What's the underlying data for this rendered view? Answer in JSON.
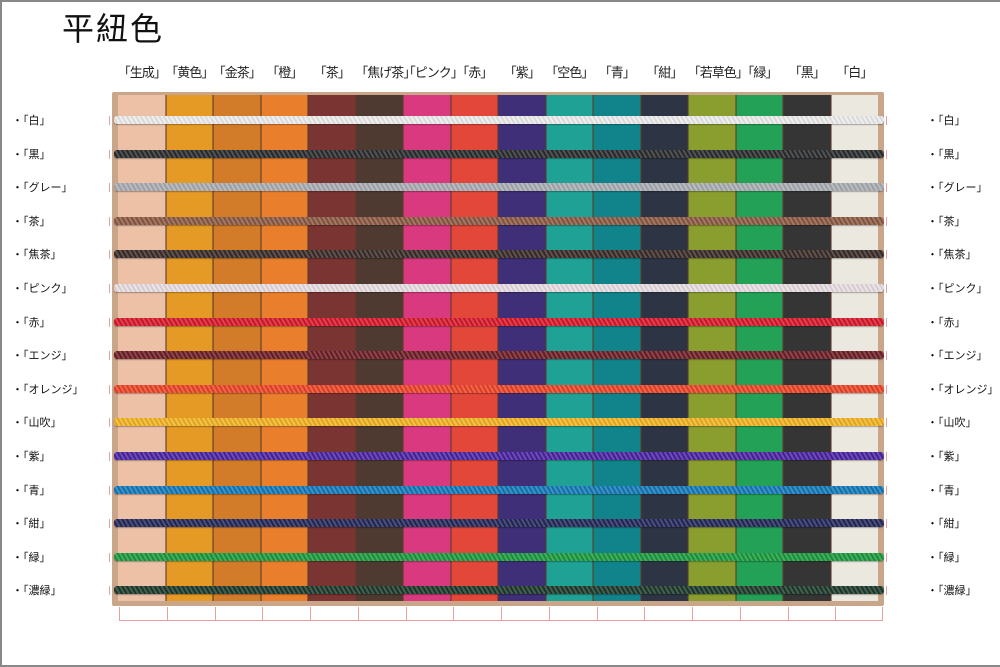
{
  "title": "平紐色",
  "columns": [
    {
      "label": "「生成」",
      "color": "#ecc1a6"
    },
    {
      "label": "「黄色」",
      "color": "#e69a26"
    },
    {
      "label": "「金茶」",
      "color": "#d27c2a"
    },
    {
      "label": "「橙」",
      "color": "#e97e2c"
    },
    {
      "label": "「茶」",
      "color": "#7a3431"
    },
    {
      "label": "「焦げ茶」",
      "color": "#4e3a30"
    },
    {
      "label": "「ピンク」",
      "color": "#d9397f"
    },
    {
      "label": "「赤」",
      "color": "#e2473a"
    },
    {
      "label": "「紫」",
      "color": "#3f2f78"
    },
    {
      "label": "「空色」",
      "color": "#20a195"
    },
    {
      "label": "「青」",
      "color": "#11838a"
    },
    {
      "label": "「紺」",
      "color": "#2d3545"
    },
    {
      "label": "「若草色」",
      "color": "#8a9e2f"
    },
    {
      "label": "「緑」",
      "color": "#23a257"
    },
    {
      "label": "「黒」",
      "color": "#353535"
    },
    {
      "label": "「白」",
      "color": "#ebe8df"
    }
  ],
  "rows": [
    {
      "label": "・「白」",
      "color": "#ececec"
    },
    {
      "label": "・「黒」",
      "color": "#2b2c2e"
    },
    {
      "label": "・「グレー」",
      "color": "#a9adb3"
    },
    {
      "label": "・「茶」",
      "color": "#8c5a43"
    },
    {
      "label": "・「焦茶」",
      "color": "#3a2c29"
    },
    {
      "label": "・「ピンク」",
      "color": "#e7dde2"
    },
    {
      "label": "・「赤」",
      "color": "#d7182a"
    },
    {
      "label": "・「エンジ」",
      "color": "#6e1e26"
    },
    {
      "label": "・「オレンジ」",
      "color": "#ec4326"
    },
    {
      "label": "・「山吹」",
      "color": "#f2b322"
    },
    {
      "label": "・「紫」",
      "color": "#4b24a2"
    },
    {
      "label": "・「青」",
      "color": "#1478b8"
    },
    {
      "label": "・「紺」",
      "color": "#23285a"
    },
    {
      "label": "・「緑」",
      "color": "#1b9a3e"
    },
    {
      "label": "・「濃緑」",
      "color": "#1d3a2b"
    }
  ]
}
